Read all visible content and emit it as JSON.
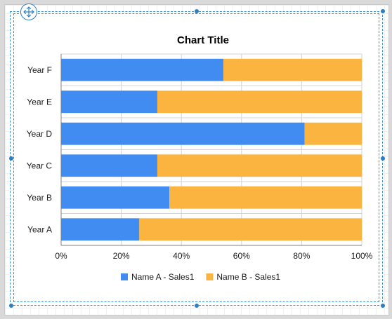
{
  "chart_data": {
    "type": "bar",
    "orientation": "horizontal",
    "stacking": "percent",
    "title": "Chart Title",
    "xlabel": "",
    "ylabel": "",
    "categories": [
      "Year A",
      "Year B",
      "Year C",
      "Year D",
      "Year E",
      "Year F"
    ],
    "series": [
      {
        "name": "Name A - Sales1",
        "color": "#418cf0",
        "values": [
          26,
          36,
          32,
          81,
          32,
          54
        ]
      },
      {
        "name": "Name B - Sales1",
        "color": "#fcb441",
        "values": [
          74,
          64,
          68,
          19,
          68,
          46
        ]
      }
    ],
    "xlim": [
      0,
      100
    ],
    "x_ticks": [
      "0%",
      "20%",
      "40%",
      "60%",
      "80%",
      "100%"
    ],
    "grid": true,
    "legend_position": "bottom"
  },
  "designer": {
    "move_handle_icon": "move-arrows-icon",
    "selection_color": "#2d7fc3"
  }
}
